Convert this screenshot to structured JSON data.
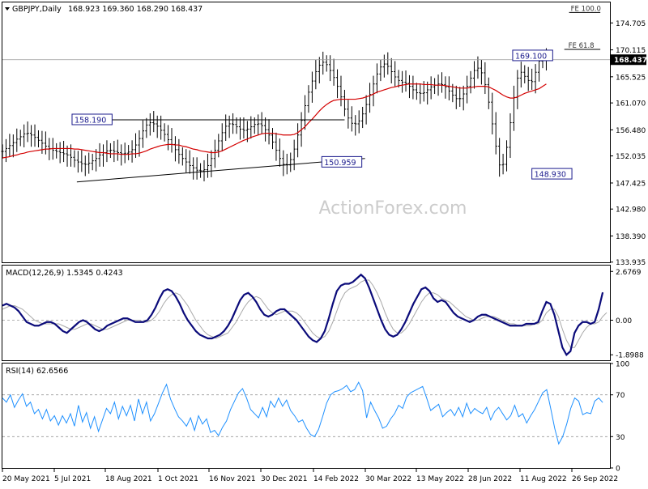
{
  "chart_data": {
    "type": "ohlc",
    "header": {
      "symbol_label": "GBPJPY,Daily",
      "ohlc_values": "168.923 169.360 168.290 168.437"
    },
    "watermark": "ActionForex.com",
    "x_tick_labels": [
      "20 May 2021",
      "5 Jul 2021",
      "18 Aug 2021",
      "1 Oct 2021",
      "16 Nov 2021",
      "30 Dec 2021",
      "14 Feb 2022",
      "30 Mar 2022",
      "13 May 2022",
      "28 Jun 2022",
      "11 Aug 2022",
      "26 Sep 2022"
    ],
    "price_panel": {
      "ylim": [
        133.9,
        178.2
      ],
      "y_ticks": [
        133.935,
        138.39,
        142.98,
        147.425,
        152.035,
        156.48,
        161.07,
        165.525,
        170.115,
        174.705
      ],
      "current_price": 168.437,
      "ma_series_name": "",
      "bars_x": [
        0,
        3,
        6,
        9,
        12,
        15,
        18,
        21,
        24,
        27,
        30,
        33,
        36,
        39,
        42,
        45,
        48,
        51,
        54,
        57,
        60,
        63,
        66,
        69,
        72,
        75,
        78,
        81,
        84,
        87,
        90,
        93,
        96,
        99,
        102,
        105,
        108,
        111,
        114,
        117,
        120,
        123,
        126,
        129,
        132,
        135,
        138,
        141,
        144,
        147,
        150,
        153,
        156,
        159,
        162,
        165,
        168,
        171,
        174,
        177,
        180,
        183,
        186,
        189,
        192,
        195,
        198,
        201,
        204,
        207,
        210,
        213,
        216,
        219,
        222,
        225,
        228,
        231,
        234,
        237,
        240,
        243,
        246,
        249,
        252,
        255,
        258,
        261,
        264,
        267,
        270,
        273,
        276,
        279,
        282,
        285,
        288,
        291,
        294,
        297,
        300,
        303,
        306,
        309,
        312,
        315,
        318,
        321,
        324,
        327,
        330,
        333,
        336,
        339,
        342,
        345,
        348,
        351,
        354,
        357,
        360,
        363,
        366,
        369,
        372,
        375,
        378,
        381,
        384,
        387,
        390,
        393,
        396,
        399,
        402,
        405,
        408,
        411,
        414,
        417,
        420,
        423,
        426,
        429,
        432,
        435,
        438,
        441,
        444,
        447,
        450,
        453,
        456,
        459,
        462,
        465,
        468,
        471,
        474,
        477,
        480,
        483,
        486,
        489,
        492,
        495,
        498
      ],
      "close": [
        152.8,
        153.3,
        153.8,
        154.3,
        154.9,
        155.3,
        155.8,
        155.9,
        155.6,
        155.2,
        154.7,
        154.2,
        153.7,
        153.3,
        153.0,
        152.8,
        152.6,
        152.4,
        152.2,
        151.8,
        151.3,
        151.0,
        150.7,
        150.6,
        150.8,
        151.2,
        151.6,
        152.2,
        152.6,
        152.9,
        153.0,
        152.8,
        152.6,
        152.4,
        152.5,
        152.7,
        153.1,
        153.9,
        155.0,
        156.3,
        157.3,
        157.7,
        157.5,
        157.1,
        156.4,
        155.7,
        154.8,
        154.0,
        153.1,
        152.3,
        151.6,
        151.0,
        150.4,
        150.0,
        149.6,
        149.5,
        149.7,
        150.4,
        151.6,
        153.0,
        154.6,
        156.0,
        157.1,
        157.5,
        157.4,
        157.0,
        156.6,
        156.4,
        156.6,
        157.0,
        157.4,
        157.5,
        157.2,
        156.5,
        155.6,
        154.4,
        153.0,
        151.6,
        150.6,
        150.5,
        151.4,
        153.2,
        155.6,
        158.1,
        160.6,
        162.9,
        164.8,
        166.4,
        167.5,
        168.0,
        167.6,
        166.6,
        165.4,
        163.9,
        162.1,
        160.0,
        158.5,
        157.6,
        157.5,
        158.0,
        159.2,
        160.8,
        162.5,
        164.3,
        166.0,
        167.2,
        167.7,
        167.3,
        166.4,
        165.5,
        164.9,
        164.6,
        164.4,
        163.9,
        163.3,
        162.8,
        162.7,
        162.8,
        163.3,
        163.8,
        164.1,
        164.3,
        164.2,
        163.8,
        163.1,
        162.4,
        161.8,
        161.8,
        162.6,
        163.9,
        165.3,
        166.6,
        167.0,
        166.2,
        164.2,
        161.2,
        157.5,
        153.7,
        150.5,
        150.6,
        153.5,
        157.7,
        162.0,
        165.3,
        166.3,
        165.6,
        164.9,
        164.7,
        166.3,
        168.2,
        168.8,
        168.4
      ],
      "spread": 2.0,
      "ma": [
        151.7,
        151.8,
        151.9,
        152.1,
        152.2,
        152.4,
        152.5,
        152.7,
        152.8,
        152.9,
        153.0,
        153.1,
        153.2,
        153.2,
        153.3,
        153.3,
        153.3,
        153.3,
        153.3,
        153.3,
        153.2,
        153.2,
        153.1,
        153.0,
        152.9,
        152.8,
        152.7,
        152.6,
        152.6,
        152.5,
        152.4,
        152.4,
        152.4,
        152.3,
        152.3,
        152.3,
        152.4,
        152.4,
        152.5,
        152.7,
        152.9,
        153.2,
        153.4,
        153.6,
        153.8,
        153.9,
        154.0,
        154.0,
        153.9,
        153.9,
        153.7,
        153.6,
        153.4,
        153.2,
        153.1,
        152.9,
        152.8,
        152.7,
        152.6,
        152.6,
        152.7,
        152.9,
        153.2,
        153.5,
        153.8,
        154.1,
        154.4,
        154.7,
        154.9,
        155.2,
        155.4,
        155.6,
        155.8,
        155.9,
        155.9,
        155.9,
        155.8,
        155.7,
        155.6,
        155.6,
        155.6,
        155.7,
        156.0,
        156.5,
        157.0,
        157.7,
        158.3,
        159.0,
        159.7,
        160.3,
        160.8,
        161.2,
        161.5,
        161.6,
        161.7,
        161.7,
        161.7,
        161.7,
        161.7,
        161.8,
        161.9,
        162.1,
        162.3,
        162.6,
        162.9,
        163.1,
        163.3,
        163.5,
        163.7,
        163.8,
        164.0,
        164.1,
        164.2,
        164.3,
        164.3,
        164.3,
        164.3,
        164.2,
        164.2,
        164.2,
        164.1,
        164.1,
        164.1,
        164.0,
        163.9,
        163.8,
        163.7,
        163.6,
        163.6,
        163.6,
        163.7,
        163.8,
        163.9,
        163.9,
        163.9,
        163.8,
        163.5,
        163.2,
        162.8,
        162.4,
        162.1,
        161.9,
        161.9,
        162.1,
        162.4,
        162.7,
        162.9,
        163.1,
        163.3,
        163.5,
        163.9,
        164.3
      ],
      "horizontal_line": 168.437,
      "triangle_upper": {
        "x": [
          72,
          285
        ],
        "y": [
          158.19,
          158.19
        ]
      },
      "triangle_lower": {
        "x": [
          62,
          302
        ],
        "y": [
          147.6,
          151.6
        ]
      },
      "annotations": [
        {
          "text": "158.190",
          "x": 58,
          "y": 158.19
        },
        {
          "text": "150.959",
          "x": 266,
          "y": 150.959
        },
        {
          "text": "169.100",
          "x": 425,
          "y": 169.1
        },
        {
          "text": "148.930",
          "x": 441,
          "y": 148.93
        },
        {
          "text": "FE 100.0",
          "x": 470,
          "y": 176.5
        },
        {
          "text": "FE 61.8",
          "x": 468,
          "y": 170.2
        }
      ],
      "fe_levels": [
        {
          "label": "FE 100.0",
          "y": 176.5,
          "x_from": 472,
          "x_to": 498
        },
        {
          "label": "FE 61.8",
          "y": 170.2,
          "x_from": 468,
          "x_to": 498
        }
      ]
    },
    "macd_panel": {
      "header": "MACD(12,26,9) 1.5345 0.4243",
      "ylim": [
        -2.2,
        3.0
      ],
      "y_ticks": [
        2.6769,
        0.0,
        -1.8988
      ],
      "main": [
        0.8,
        0.9,
        0.8,
        0.7,
        0.5,
        0.2,
        -0.1,
        -0.2,
        -0.3,
        -0.3,
        -0.2,
        -0.1,
        -0.1,
        -0.2,
        -0.4,
        -0.6,
        -0.7,
        -0.5,
        -0.3,
        -0.1,
        0.0,
        -0.1,
        -0.3,
        -0.5,
        -0.6,
        -0.5,
        -0.3,
        -0.2,
        -0.1,
        0.0,
        0.1,
        0.1,
        0.0,
        -0.1,
        -0.1,
        -0.1,
        0.0,
        0.3,
        0.7,
        1.2,
        1.6,
        1.7,
        1.6,
        1.3,
        0.9,
        0.4,
        0.0,
        -0.3,
        -0.6,
        -0.8,
        -0.9,
        -1.0,
        -1.0,
        -0.9,
        -0.8,
        -0.6,
        -0.3,
        0.1,
        0.6,
        1.1,
        1.4,
        1.5,
        1.3,
        1.0,
        0.6,
        0.3,
        0.2,
        0.3,
        0.5,
        0.6,
        0.6,
        0.4,
        0.2,
        0.0,
        -0.3,
        -0.6,
        -0.9,
        -1.1,
        -1.2,
        -1.0,
        -0.6,
        0.1,
        0.9,
        1.6,
        1.9,
        2.0,
        2.0,
        2.1,
        2.3,
        2.5,
        2.3,
        1.8,
        1.2,
        0.6,
        0.0,
        -0.5,
        -0.8,
        -0.9,
        -0.8,
        -0.5,
        -0.1,
        0.4,
        0.9,
        1.3,
        1.7,
        1.8,
        1.6,
        1.2,
        1.0,
        1.1,
        1.0,
        0.7,
        0.4,
        0.2,
        0.1,
        0.0,
        -0.1,
        0.0,
        0.2,
        0.3,
        0.3,
        0.2,
        0.1,
        0.0,
        -0.1,
        -0.2,
        -0.3,
        -0.3,
        -0.3,
        -0.3,
        -0.2,
        -0.2,
        -0.2,
        -0.1,
        0.5,
        1.0,
        0.9,
        0.3,
        -0.6,
        -1.5,
        -1.9,
        -1.7,
        -0.7,
        -0.3,
        -0.1,
        -0.1,
        -0.2,
        -0.1,
        0.6,
        1.53
      ],
      "signal": [
        0.6,
        0.7,
        0.8,
        0.8,
        0.7,
        0.6,
        0.4,
        0.2,
        0.0,
        -0.1,
        -0.2,
        -0.2,
        -0.2,
        -0.2,
        -0.2,
        -0.3,
        -0.4,
        -0.5,
        -0.5,
        -0.4,
        -0.3,
        -0.2,
        -0.2,
        -0.3,
        -0.4,
        -0.5,
        -0.5,
        -0.4,
        -0.3,
        -0.2,
        -0.1,
        0.0,
        0.0,
        0.0,
        0.0,
        -0.1,
        -0.1,
        0.0,
        0.2,
        0.5,
        0.9,
        1.2,
        1.4,
        1.5,
        1.4,
        1.1,
        0.8,
        0.4,
        0.0,
        -0.3,
        -0.6,
        -0.8,
        -0.9,
        -1.0,
        -0.9,
        -0.8,
        -0.7,
        -0.4,
        -0.1,
        0.3,
        0.7,
        1.0,
        1.2,
        1.3,
        1.2,
        0.9,
        0.6,
        0.4,
        0.3,
        0.4,
        0.5,
        0.5,
        0.5,
        0.4,
        0.2,
        -0.1,
        -0.4,
        -0.7,
        -0.9,
        -1.0,
        -0.9,
        -0.6,
        -0.1,
        0.5,
        1.1,
        1.5,
        1.7,
        1.8,
        1.9,
        2.1,
        2.2,
        2.2,
        1.9,
        1.5,
        1.0,
        0.4,
        -0.1,
        -0.5,
        -0.7,
        -0.7,
        -0.5,
        -0.2,
        0.2,
        0.6,
        1.0,
        1.3,
        1.5,
        1.5,
        1.4,
        1.2,
        1.1,
        1.0,
        0.8,
        0.6,
        0.4,
        0.2,
        0.1,
        0.0,
        0.0,
        0.1,
        0.2,
        0.2,
        0.2,
        0.1,
        0.0,
        -0.1,
        -0.2,
        -0.2,
        -0.3,
        -0.3,
        -0.3,
        -0.3,
        -0.2,
        -0.2,
        0.0,
        0.4,
        0.6,
        0.6,
        0.2,
        -0.5,
        -1.1,
        -1.5,
        -1.5,
        -1.1,
        -0.7,
        -0.4,
        -0.2,
        -0.2,
        -0.1,
        0.2,
        0.42
      ]
    },
    "rsi_panel": {
      "header": "RSI(14) 62.6566",
      "ylim": [
        0,
        100
      ],
      "y_ticks": [
        100,
        70,
        30,
        0
      ],
      "levels": [
        70,
        30
      ],
      "values": [
        67,
        63,
        70,
        58,
        65,
        71,
        59,
        63,
        52,
        56,
        47,
        56,
        45,
        50,
        41,
        50,
        43,
        52,
        40,
        60,
        44,
        53,
        38,
        49,
        35,
        46,
        57,
        52,
        63,
        47,
        59,
        50,
        60,
        45,
        66,
        52,
        63,
        45,
        52,
        62,
        72,
        80,
        66,
        57,
        49,
        45,
        40,
        48,
        36,
        50,
        42,
        47,
        34,
        36,
        31,
        39,
        45,
        56,
        64,
        72,
        76,
        67,
        56,
        52,
        48,
        58,
        49,
        64,
        58,
        67,
        59,
        65,
        55,
        50,
        44,
        46,
        38,
        32,
        30,
        37,
        49,
        62,
        70,
        73,
        74,
        76,
        79,
        73,
        75,
        82,
        74,
        48,
        63,
        55,
        48,
        38,
        40,
        47,
        52,
        60,
        57,
        68,
        72,
        74,
        76,
        78,
        67,
        55,
        58,
        61,
        49,
        53,
        56,
        50,
        58,
        49,
        62,
        52,
        57,
        54,
        52,
        58,
        46,
        54,
        58,
        52,
        46,
        50,
        60,
        49,
        52,
        43,
        50,
        56,
        64,
        72,
        75,
        57,
        38,
        23,
        30,
        42,
        57,
        67,
        64,
        51,
        53,
        52,
        64,
        67,
        62.66
      ]
    }
  }
}
